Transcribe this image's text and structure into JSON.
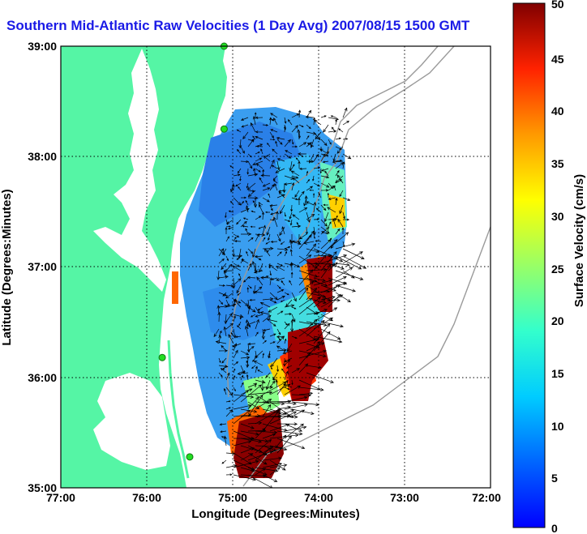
{
  "title": "Southern Mid-Atlantic Raw Velocities (1 Day Avg) 2007/08/15 1500 GMT",
  "map": {
    "xlabel": "Longitude (Degrees:Minutes)",
    "ylabel": "Latitude (Degrees:Minutes)",
    "lon_ticks": [
      "77:00",
      "76:00",
      "75:00",
      "74:00",
      "73:00",
      "72:00"
    ],
    "lat_ticks": [
      "39:00",
      "38:00",
      "37:00",
      "36:00",
      "35:00"
    ],
    "lon_range": [
      -77,
      -72
    ],
    "lat_range": [
      35,
      39
    ],
    "grid": true
  },
  "colorbar": {
    "label": "Surface Velocity (cm/s)",
    "ticks": [
      "50",
      "45",
      "40",
      "35",
      "30",
      "25",
      "20",
      "15",
      "10",
      "5",
      "0"
    ],
    "range": [
      0,
      50
    ],
    "colormap": "jet"
  },
  "colors": {
    "land": "#55f5a5",
    "water": "#ffffff",
    "title": "#1a1ae6",
    "station": "#22dd22"
  },
  "stations": [
    {
      "lon": -75.1,
      "lat": 39.0
    },
    {
      "lon": -75.1,
      "lat": 38.25
    },
    {
      "lon": -75.82,
      "lat": 36.18
    },
    {
      "lon": -75.5,
      "lat": 35.28
    }
  ]
}
